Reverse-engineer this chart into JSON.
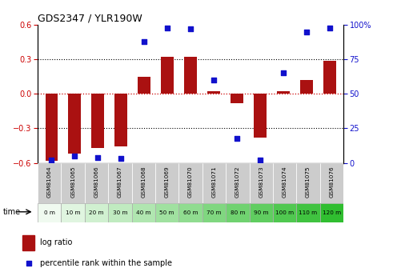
{
  "title": "GDS2347 / YLR190W",
  "samples": [
    "GSM81064",
    "GSM81065",
    "GSM81066",
    "GSM81067",
    "GSM81068",
    "GSM81069",
    "GSM81070",
    "GSM81071",
    "GSM81072",
    "GSM81073",
    "GSM81074",
    "GSM81075",
    "GSM81076"
  ],
  "time_labels": [
    "0 m",
    "10 m",
    "20 m",
    "30 m",
    "40 m",
    "50 m",
    "60 m",
    "70 m",
    "80 m",
    "90 m",
    "100 m",
    "110 m",
    "120 m"
  ],
  "log_ratio": [
    -0.58,
    -0.52,
    -0.47,
    -0.46,
    0.15,
    0.32,
    0.32,
    0.02,
    -0.08,
    -0.38,
    0.02,
    0.12,
    0.29
  ],
  "percentile_rank": [
    2,
    5,
    4,
    3,
    88,
    98,
    97,
    60,
    18,
    2,
    65,
    95,
    98
  ],
  "ylim_left": [
    -0.6,
    0.6
  ],
  "ylim_right": [
    0,
    100
  ],
  "yticks_left": [
    -0.6,
    -0.3,
    0.0,
    0.3,
    0.6
  ],
  "yticks_right": [
    0,
    25,
    50,
    75,
    100
  ],
  "bar_color": "#aa1111",
  "scatter_color": "#1111cc",
  "gray_row_color": "#cccccc",
  "green_row_colors": [
    "#e8f8e8",
    "#d0f0d0",
    "#b0e8b0",
    "#88dd88"
  ],
  "legend_log_ratio": "log ratio",
  "legend_percentile": "percentile rank within the sample",
  "bar_width": 0.55,
  "time_arrow_label": "time"
}
